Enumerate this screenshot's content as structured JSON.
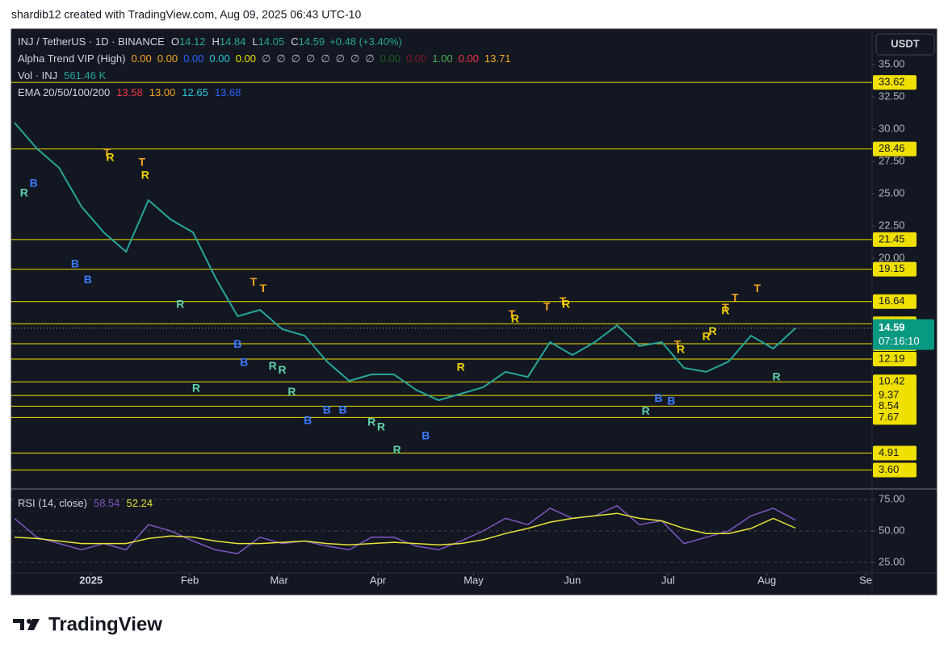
{
  "header": {
    "text": "shardib12 created with TradingView.com, Aug 09, 2025 06:43 UTC-10"
  },
  "footer": {
    "brand": "TradingView"
  },
  "chart_data": [
    {
      "type": "line",
      "currency": "USDT",
      "x": [
        -24,
        -17,
        -10,
        -3,
        4,
        11,
        18,
        25,
        32,
        39,
        46,
        53,
        60,
        67,
        74,
        81,
        88,
        95,
        102,
        109,
        116,
        123,
        130,
        137,
        144,
        151,
        158,
        165,
        172,
        179,
        186,
        193,
        200,
        207,
        214,
        221
      ],
      "series": [
        {
          "name": "INJ / TetherUS · 1D · BINANCE",
          "color": "#26a69a",
          "values": [
            30.5,
            28.5,
            27.0,
            24.0,
            22.0,
            20.5,
            24.5,
            23.0,
            22.0,
            18.5,
            15.5,
            16.0,
            14.5,
            14.0,
            12.0,
            10.5,
            11.0,
            11.0,
            9.8,
            9.0,
            9.5,
            10.0,
            11.2,
            10.8,
            13.5,
            12.5,
            13.5,
            14.8,
            13.2,
            13.5,
            11.5,
            11.2,
            12.0,
            14.0,
            13.0,
            14.59
          ]
        }
      ],
      "ohlc": [
        {
          "label": "O",
          "value": 14.12
        },
        {
          "label": "H",
          "value": 14.84
        },
        {
          "label": "L",
          "value": 14.05
        },
        {
          "label": "C",
          "value": 14.59
        }
      ],
      "change": "+0.48 (+3.40%)",
      "alpha_trend": {
        "name": "Alpha Trend VIP (High)",
        "values": [
          {
            "text": "0.00",
            "color": "#f5a623"
          },
          {
            "text": "0.00",
            "color": "#f5a623"
          },
          {
            "text": "0.00",
            "color": "#2962ff"
          },
          {
            "text": "0.00",
            "color": "#26c6da"
          },
          {
            "text": "0.00",
            "color": "#f0e000"
          },
          {
            "text": "∅",
            "color": "#b2b5be"
          },
          {
            "text": "∅",
            "color": "#b2b5be"
          },
          {
            "text": "∅",
            "color": "#b2b5be"
          },
          {
            "text": "∅",
            "color": "#b2b5be"
          },
          {
            "text": "∅",
            "color": "#b2b5be"
          },
          {
            "text": "∅",
            "color": "#b2b5be"
          },
          {
            "text": "∅",
            "color": "#b2b5be"
          },
          {
            "text": "∅",
            "color": "#b2b5be"
          },
          {
            "text": "0.00",
            "color": "#1b5e20"
          },
          {
            "text": "0.00",
            "color": "#801922"
          },
          {
            "text": "1.00",
            "color": "#4caf50"
          },
          {
            "text": "0.00",
            "color": "#f23645"
          },
          {
            "text": "13.71",
            "color": "#f5a623"
          }
        ]
      },
      "volume": {
        "name": "Vol · INJ",
        "value": "561.46 K"
      },
      "ema": {
        "name": "EMA 20/50/100/200",
        "values": [
          {
            "text": "13.58",
            "color": "#f23645"
          },
          {
            "text": "13.00",
            "color": "#f5a623"
          },
          {
            "text": "12.65",
            "color": "#26c6da"
          },
          {
            "text": "13.68",
            "color": "#2962ff"
          }
        ]
      },
      "xlim": [
        -25,
        245
      ],
      "ylim": [
        2.19,
        37.75
      ],
      "yticks": [
        {
          "value": 35,
          "label": "35.00"
        },
        {
          "value": 32.5,
          "label": "32.50"
        },
        {
          "value": 30,
          "label": "30.00"
        },
        {
          "value": 27.5,
          "label": "27.50"
        },
        {
          "value": 25,
          "label": "25.00"
        },
        {
          "value": 22.5,
          "label": "22.50"
        },
        {
          "value": 20,
          "label": "20.00"
        }
      ],
      "levels": [
        33.62,
        28.46,
        21.45,
        19.15,
        16.64,
        14.92,
        13.38,
        12.19,
        10.42,
        9.37,
        8.54,
        7.67,
        4.91,
        {
          "value": 3.6,
          "label": "3.60"
        }
      ],
      "level_color": "#f0e000",
      "last_price": {
        "value": 14.59,
        "countdown": "07:16:10",
        "color": "#089981"
      },
      "signals": [
        {
          "label": "R",
          "x": -21,
          "price": 25.0,
          "color": "#5ed1a8"
        },
        {
          "label": "B",
          "x": -18,
          "price": 25.75,
          "color": "#3b7bff"
        },
        {
          "label": "T",
          "x": 5,
          "price": 28.1,
          "color": "#f5a623"
        },
        {
          "label": "R",
          "x": 6,
          "price": 27.75,
          "color": "#f0d000"
        },
        {
          "label": "T",
          "x": 16,
          "price": 27.4,
          "color": "#f5a623"
        },
        {
          "label": "R",
          "x": 17,
          "price": 26.4,
          "color": "#f0d000"
        },
        {
          "label": "B",
          "x": -5,
          "price": 19.5,
          "color": "#3b7bff"
        },
        {
          "label": "B",
          "x": -1,
          "price": 18.3,
          "color": "#3b7bff"
        },
        {
          "label": "R",
          "x": 28,
          "price": 16.4,
          "color": "#5ed1a8"
        },
        {
          "label": "T",
          "x": 51,
          "price": 18.1,
          "color": "#f5a623"
        },
        {
          "label": "T",
          "x": 54,
          "price": 17.6,
          "color": "#f5a623"
        },
        {
          "label": "B",
          "x": 46,
          "price": 13.3,
          "color": "#3b7bff"
        },
        {
          "label": "B",
          "x": 48,
          "price": 11.9,
          "color": "#3b7bff"
        },
        {
          "label": "R",
          "x": 57,
          "price": 11.6,
          "color": "#5ed1a8"
        },
        {
          "label": "R",
          "x": 60,
          "price": 11.3,
          "color": "#5ed1a8"
        },
        {
          "label": "R",
          "x": 33,
          "price": 9.9,
          "color": "#5ed1a8"
        },
        {
          "label": "R",
          "x": 63,
          "price": 9.6,
          "color": "#5ed1a8"
        },
        {
          "label": "B",
          "x": 68,
          "price": 7.4,
          "color": "#3b7bff"
        },
        {
          "label": "B",
          "x": 74,
          "price": 8.2,
          "color": "#3b7bff"
        },
        {
          "label": "B",
          "x": 79,
          "price": 8.2,
          "color": "#3b7bff"
        },
        {
          "label": "R",
          "x": 88,
          "price": 7.25,
          "color": "#5ed1a8"
        },
        {
          "label": "R",
          "x": 91,
          "price": 6.9,
          "color": "#5ed1a8"
        },
        {
          "label": "B",
          "x": 105,
          "price": 6.2,
          "color": "#3b7bff"
        },
        {
          "label": "R",
          "x": 96,
          "price": 5.1,
          "color": "#5ed1a8"
        },
        {
          "label": "R",
          "x": 116,
          "price": 11.5,
          "color": "#f0d000"
        },
        {
          "label": "T",
          "x": 132,
          "price": 15.6,
          "color": "#f5a623"
        },
        {
          "label": "R",
          "x": 133,
          "price": 15.25,
          "color": "#f0d000"
        },
        {
          "label": "T",
          "x": 143,
          "price": 16.2,
          "color": "#f5a623"
        },
        {
          "label": "T",
          "x": 148,
          "price": 16.6,
          "color": "#f5a623"
        },
        {
          "label": "R",
          "x": 149,
          "price": 16.4,
          "color": "#f0d000"
        },
        {
          "label": "T",
          "x": 184,
          "price": 13.25,
          "color": "#f5a623"
        },
        {
          "label": "R",
          "x": 185,
          "price": 12.9,
          "color": "#f0d000"
        },
        {
          "label": "R",
          "x": 193,
          "price": 13.9,
          "color": "#f0d000"
        },
        {
          "label": "R",
          "x": 195,
          "price": 14.3,
          "color": "#f0d000"
        },
        {
          "label": "T",
          "x": 199,
          "price": 16.1,
          "color": "#f5a623"
        },
        {
          "label": "R",
          "x": 199,
          "price": 15.9,
          "color": "#f0d000"
        },
        {
          "label": "T",
          "x": 202,
          "price": 16.9,
          "color": "#f5a623"
        },
        {
          "label": "T",
          "x": 209,
          "price": 17.6,
          "color": "#f5a623"
        },
        {
          "label": "R",
          "x": 215,
          "price": 10.75,
          "color": "#5ed1a8"
        },
        {
          "label": "R",
          "x": 174,
          "price": 8.1,
          "color": "#5ed1a8"
        },
        {
          "label": "B",
          "x": 178,
          "price": 9.1,
          "color": "#3b7bff"
        },
        {
          "label": "B",
          "x": 182,
          "price": 8.9,
          "color": "#3b7bff"
        }
      ]
    },
    {
      "type": "line",
      "title": "RSI (14, close)",
      "x": [
        -24,
        -17,
        -10,
        -3,
        4,
        11,
        18,
        25,
        32,
        39,
        46,
        53,
        60,
        67,
        74,
        81,
        88,
        95,
        102,
        109,
        116,
        123,
        130,
        137,
        144,
        151,
        158,
        165,
        172,
        179,
        186,
        193,
        200,
        207,
        214,
        221
      ],
      "series": [
        {
          "color": "#7e57c2",
          "values": [
            60,
            45,
            40,
            35,
            40,
            35,
            55,
            50,
            42,
            35,
            32,
            45,
            40,
            42,
            38,
            35,
            45,
            45,
            38,
            35,
            42,
            50,
            60,
            55,
            68,
            60,
            62,
            70,
            55,
            58,
            40,
            45,
            50,
            62,
            68,
            58.54
          ]
        },
        {
          "color": "#e8e337",
          "values": [
            45,
            44,
            42,
            40,
            40,
            40,
            44,
            46,
            45,
            42,
            40,
            40,
            41,
            42,
            40,
            39,
            40,
            41,
            40,
            39,
            40,
            43,
            48,
            52,
            57,
            60,
            62,
            64,
            60,
            58,
            52,
            48,
            48,
            52,
            60,
            52.24
          ]
        }
      ],
      "xlim": [
        -25,
        245
      ],
      "xticks": [
        {
          "value": 0,
          "label": "2025"
        },
        {
          "value": 31,
          "label": "Feb"
        },
        {
          "value": 59,
          "label": "Mar"
        },
        {
          "value": 90,
          "label": "Apr"
        },
        {
          "value": 120,
          "label": "May"
        },
        {
          "value": 151,
          "label": "Jun"
        },
        {
          "value": 181,
          "label": "Jul"
        },
        {
          "value": 212,
          "label": "Aug"
        },
        {
          "value": 243,
          "label": "Se"
        }
      ],
      "ylim": [
        16.7,
        82.7
      ],
      "yticks": [
        {
          "value": 75,
          "label": "75.00"
        },
        {
          "value": 50,
          "label": "50.00"
        },
        {
          "value": 25,
          "label": "25.00"
        }
      ]
    }
  ]
}
